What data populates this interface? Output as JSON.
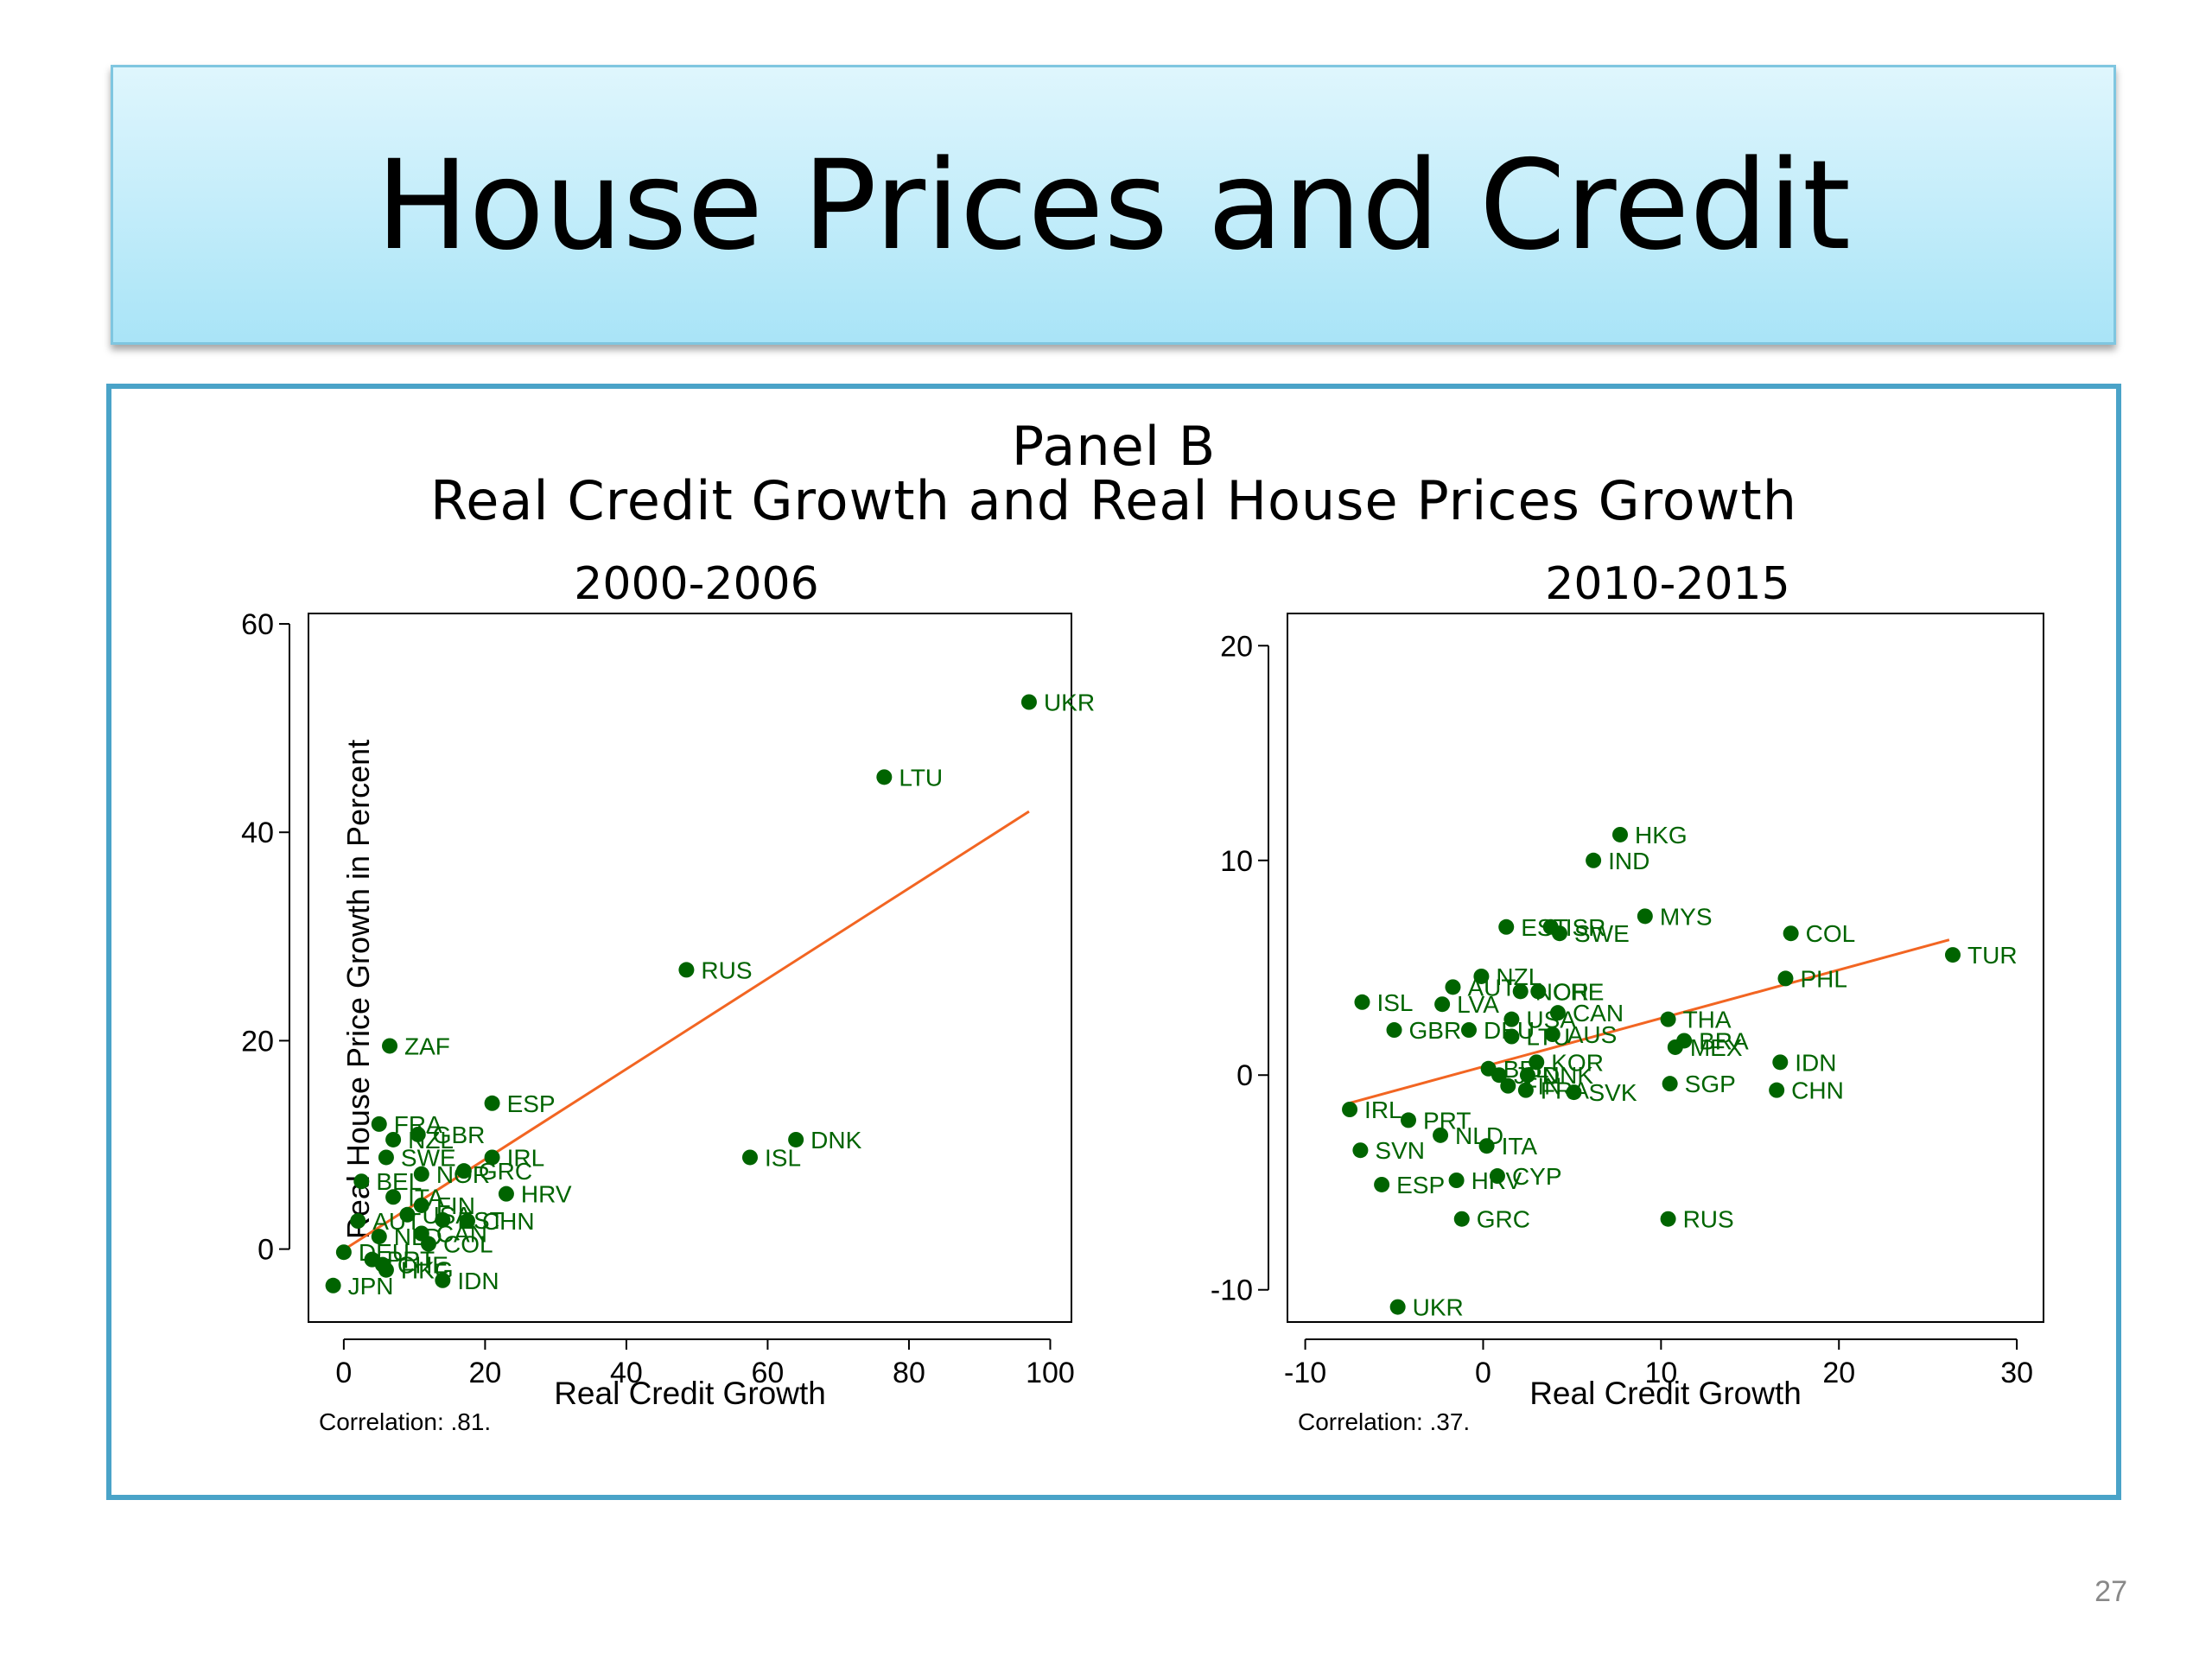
{
  "slide": {
    "title": "House Prices and Credit",
    "page_number": "27"
  },
  "panel": {
    "title": "Panel B",
    "subtitle": "Real Credit Growth and Real House Prices Growth"
  },
  "colors": {
    "point": "#006400",
    "fit_line": "#f26522",
    "frame": "#4aa3c8"
  },
  "chart_data": [
    {
      "type": "scatter",
      "title": "2000-2006",
      "xlabel": "Real Credit Growth",
      "ylabel": "Real House Price Growth in Percent",
      "xlim": [
        -5,
        103
      ],
      "ylim": [
        -7,
        61
      ],
      "xticks": [
        0,
        20,
        40,
        60,
        80,
        100
      ],
      "yticks": [
        0,
        20,
        40,
        60
      ],
      "note": "Correlation: .81.",
      "fit_line": [
        [
          -1,
          -0.5
        ],
        [
          97,
          42
        ]
      ],
      "points": [
        {
          "label": "UKR",
          "x": 97,
          "y": 52.5
        },
        {
          "label": "LTU",
          "x": 76.5,
          "y": 45.3
        },
        {
          "label": "RUS",
          "x": 48.5,
          "y": 26.8
        },
        {
          "label": "DNK",
          "x": 64,
          "y": 10.5
        },
        {
          "label": "ISL",
          "x": 57.5,
          "y": 8.8
        },
        {
          "label": "ZAF",
          "x": 6.5,
          "y": 19.5
        },
        {
          "label": "ESP",
          "x": 21,
          "y": 14
        },
        {
          "label": "HRV",
          "x": 23,
          "y": 5.3
        },
        {
          "label": "FRA",
          "x": 5,
          "y": 12
        },
        {
          "label": "GBR",
          "x": 10.5,
          "y": 11
        },
        {
          "label": "NZL",
          "x": 7,
          "y": 10.5
        },
        {
          "label": "SWE",
          "x": 6,
          "y": 8.8
        },
        {
          "label": "IRL",
          "x": 21,
          "y": 8.8
        },
        {
          "label": "GRC",
          "x": 17,
          "y": 7.5
        },
        {
          "label": "NOR",
          "x": 11,
          "y": 7.2
        },
        {
          "label": "BEL",
          "x": 2.5,
          "y": 6.5
        },
        {
          "label": "ITA",
          "x": 7,
          "y": 5
        },
        {
          "label": "FIN",
          "x": 11,
          "y": 4.2
        },
        {
          "label": "CHN",
          "x": 17.5,
          "y": 2.7
        },
        {
          "label": "EST",
          "x": 14,
          "y": 2.8
        },
        {
          "label": "USA",
          "x": 9,
          "y": 3.3
        },
        {
          "label": "CAN",
          "x": 11,
          "y": 1.5
        },
        {
          "label": "COL",
          "x": 12,
          "y": 0.5
        },
        {
          "label": "NLD",
          "x": 5,
          "y": 1.2
        },
        {
          "label": "AUT",
          "x": 2,
          "y": 2.7
        },
        {
          "label": "PRT",
          "x": 4,
          "y": -1
        },
        {
          "label": "DEU",
          "x": 0,
          "y": -0.3
        },
        {
          "label": "CHE",
          "x": 5.5,
          "y": -1.5
        },
        {
          "label": "HKG",
          "x": 6,
          "y": -2
        },
        {
          "label": "IDN",
          "x": 14,
          "y": -3
        },
        {
          "label": "JPN",
          "x": -1.5,
          "y": -3.5
        }
      ]
    },
    {
      "type": "scatter",
      "title": "2010-2015",
      "xlabel": "Real Credit Growth",
      "ylabel": "",
      "xlim": [
        -11,
        31.5
      ],
      "ylim": [
        -11.5,
        21.5
      ],
      "xticks": [
        -10,
        0,
        10,
        20,
        30
      ],
      "yticks": [
        -10,
        0,
        10,
        20
      ],
      "note": "Correlation: .37.",
      "fit_line": [
        [
          -7.5,
          -1.3
        ],
        [
          26.2,
          6.3
        ]
      ],
      "points": [
        {
          "label": "HKG",
          "x": 7.7,
          "y": 11.2
        },
        {
          "label": "IND",
          "x": 6.2,
          "y": 10
        },
        {
          "label": "MYS",
          "x": 9.1,
          "y": 7.4
        },
        {
          "label": "EST",
          "x": 1.3,
          "y": 6.9
        },
        {
          "label": "ISR",
          "x": 3.8,
          "y": 6.9
        },
        {
          "label": "SWE",
          "x": 4.3,
          "y": 6.6
        },
        {
          "label": "COL",
          "x": 17.3,
          "y": 6.6
        },
        {
          "label": "TUR",
          "x": 26.4,
          "y": 5.6
        },
        {
          "label": "PHL",
          "x": 17,
          "y": 4.5
        },
        {
          "label": "NZL",
          "x": -0.1,
          "y": 4.6
        },
        {
          "label": "AUT",
          "x": -1.7,
          "y": 4.1
        },
        {
          "label": "NOR",
          "x": 2.1,
          "y": 3.9
        },
        {
          "label": "CHE",
          "x": 3.1,
          "y": 3.9
        },
        {
          "label": "ISL",
          "x": -6.8,
          "y": 3.4
        },
        {
          "label": "LVA",
          "x": -2.3,
          "y": 3.3
        },
        {
          "label": "CAN",
          "x": 4.2,
          "y": 2.9
        },
        {
          "label": "USA",
          "x": 1.6,
          "y": 2.6
        },
        {
          "label": "THA",
          "x": 10.4,
          "y": 2.6
        },
        {
          "label": "GBR",
          "x": -5,
          "y": 2.1
        },
        {
          "label": "DEU",
          "x": -0.8,
          "y": 2.1
        },
        {
          "label": "LTU",
          "x": 1.6,
          "y": 1.8
        },
        {
          "label": "AUS",
          "x": 3.9,
          "y": 1.9
        },
        {
          "label": "BRA",
          "x": 11.3,
          "y": 1.6
        },
        {
          "label": "MEX",
          "x": 10.8,
          "y": 1.3
        },
        {
          "label": "KOR",
          "x": 3,
          "y": 0.6
        },
        {
          "label": "IDN",
          "x": 16.7,
          "y": 0.6
        },
        {
          "label": "BEL",
          "x": 0.3,
          "y": 0.3
        },
        {
          "label": "JPN",
          "x": 0.9,
          "y": 0
        },
        {
          "label": "DNK",
          "x": 2.5,
          "y": 0
        },
        {
          "label": "FIN",
          "x": 1.4,
          "y": -0.5
        },
        {
          "label": "FRA",
          "x": 2.4,
          "y": -0.7
        },
        {
          "label": "SVK",
          "x": 5.1,
          "y": -0.8
        },
        {
          "label": "SGP",
          "x": 10.5,
          "y": -0.4
        },
        {
          "label": "CHN",
          "x": 16.5,
          "y": -0.7
        },
        {
          "label": "IRL",
          "x": -7.5,
          "y": -1.6
        },
        {
          "label": "PRT",
          "x": -4.2,
          "y": -2.1
        },
        {
          "label": "NLD",
          "x": -2.4,
          "y": -2.8
        },
        {
          "label": "ITA",
          "x": 0.2,
          "y": -3.3
        },
        {
          "label": "SVN",
          "x": -6.9,
          "y": -3.5
        },
        {
          "label": "CYP",
          "x": 0.8,
          "y": -4.7
        },
        {
          "label": "ESP",
          "x": -5.7,
          "y": -5.1
        },
        {
          "label": "HRV",
          "x": -1.5,
          "y": -4.9
        },
        {
          "label": "GRC",
          "x": -1.2,
          "y": -6.7
        },
        {
          "label": "RUS",
          "x": 10.4,
          "y": -6.7
        },
        {
          "label": "UKR",
          "x": -4.8,
          "y": -10.8
        }
      ]
    }
  ]
}
